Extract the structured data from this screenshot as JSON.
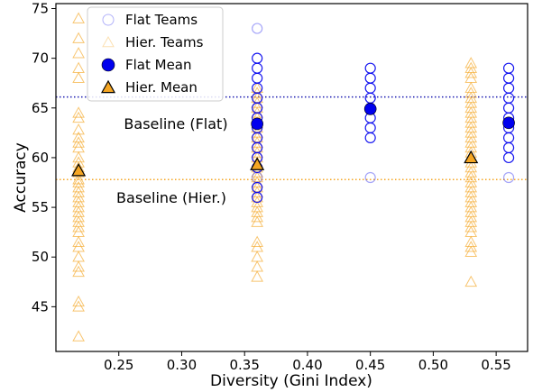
{
  "chart_data": {
    "type": "scatter",
    "xlabel": "Diversity (Gini Index)",
    "ylabel": "Accuracy",
    "xlim": [
      0.2,
      0.575
    ],
    "ylim": [
      40.5,
      75.5
    ],
    "xticks": [
      0.25,
      0.3,
      0.35,
      0.4,
      0.45,
      0.5,
      0.55
    ],
    "xtick_labels": [
      "0.25",
      "0.30",
      "0.35",
      "0.40",
      "0.45",
      "0.50",
      "0.55"
    ],
    "yticks": [
      45,
      50,
      55,
      60,
      65,
      70,
      75
    ],
    "ytick_labels": [
      "45",
      "50",
      "55",
      "60",
      "65",
      "70",
      "75"
    ],
    "legend_position": "top-left",
    "legend": [
      {
        "label": "Flat Teams",
        "marker": "circle-open-faded",
        "color": "#0000ee"
      },
      {
        "label": "Hier. Teams",
        "marker": "triangle-open-faded",
        "color": "#f5a623"
      },
      {
        "label": "Flat Mean",
        "marker": "circle-filled",
        "color": "#0000ee"
      },
      {
        "label": "Hier. Mean",
        "marker": "triangle-filled",
        "color": "#f5a623"
      }
    ],
    "baselines": [
      {
        "label": "Baseline (Flat)",
        "y": 66.1,
        "color": "#1a1ab0"
      },
      {
        "label": "Baseline (Hier.)",
        "y": 57.8,
        "color": "#f5a623"
      }
    ],
    "series": [
      {
        "name": "Flat Teams",
        "points": [
          {
            "x": 0.36,
            "y": [
              73,
              70,
              69,
              68,
              67,
              66,
              65,
              64,
              63,
              62,
              61,
              60,
              59,
              58,
              57,
              56
            ]
          },
          {
            "x": 0.45,
            "y": [
              69,
              68,
              67,
              66,
              65,
              64,
              63,
              62,
              58
            ]
          },
          {
            "x": 0.56,
            "y": [
              69,
              68,
              67,
              66,
              65,
              64,
              63,
              62,
              61,
              60,
              58
            ]
          }
        ]
      },
      {
        "name": "Hier. Teams",
        "points": [
          {
            "x": 0.218,
            "y": [
              74,
              72,
              70.5,
              69,
              68,
              64.5,
              64,
              62.8,
              62,
              61.5,
              61,
              60,
              59.5,
              59,
              58.5,
              57.8,
              57.5,
              57,
              56.5,
              56,
              55.5,
              55,
              54.5,
              54,
              53.5,
              53,
              52.5,
              51.5,
              51,
              50,
              49,
              48.5,
              45.5,
              45,
              42
            ]
          },
          {
            "x": 0.36,
            "y": [
              67,
              66.5,
              66,
              65.5,
              65,
              64.5,
              64,
              63.5,
              63,
              62.5,
              62,
              61.5,
              61,
              60.5,
              60,
              59.5,
              59,
              58.5,
              58,
              57.5,
              57,
              56.5,
              56,
              55.5,
              55,
              54.5,
              54,
              53.5,
              51.5,
              51,
              50,
              49,
              48
            ]
          },
          {
            "x": 0.53,
            "y": [
              69.5,
              69,
              68.5,
              68,
              67,
              66.5,
              66,
              65.5,
              65,
              64.5,
              64,
              63.5,
              63,
              62.5,
              62,
              61.5,
              61,
              60.5,
              60,
              59.5,
              59,
              58.5,
              58,
              57.5,
              57,
              56.5,
              56,
              55.5,
              55,
              54.5,
              54,
              53.5,
              53,
              52.5,
              51.5,
              51,
              50.5,
              47.5
            ]
          }
        ]
      },
      {
        "name": "Flat Mean",
        "points": [
          {
            "x": 0.36,
            "y": 63.4
          },
          {
            "x": 0.45,
            "y": 64.9
          },
          {
            "x": 0.56,
            "y": 63.5
          }
        ]
      },
      {
        "name": "Hier. Mean",
        "points": [
          {
            "x": 0.218,
            "y": 58.7
          },
          {
            "x": 0.36,
            "y": 59.3
          },
          {
            "x": 0.53,
            "y": 60.0
          }
        ]
      }
    ]
  }
}
